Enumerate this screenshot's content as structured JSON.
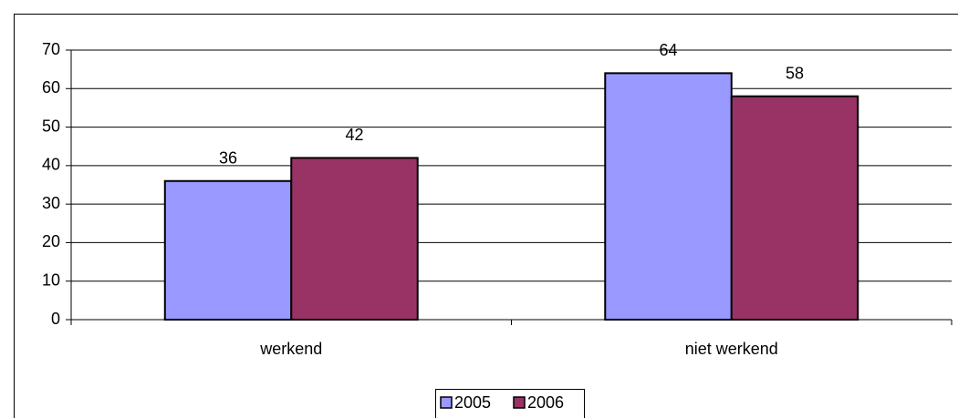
{
  "chart_data": {
    "type": "bar",
    "categories": [
      "werkend",
      "niet werkend"
    ],
    "series": [
      {
        "name": "2005",
        "color": "#9999ff",
        "values": [
          36,
          64
        ]
      },
      {
        "name": "2006",
        "color": "#993366",
        "values": [
          42,
          58
        ]
      }
    ],
    "ylim": [
      0,
      70
    ],
    "yticks": [
      0,
      10,
      20,
      30,
      40,
      50,
      60,
      70
    ],
    "grid": true,
    "legend": "bottom"
  }
}
